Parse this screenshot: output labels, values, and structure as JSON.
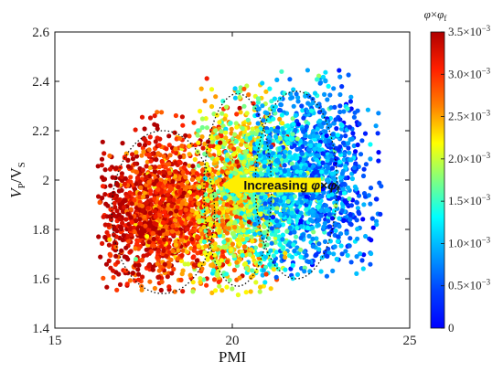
{
  "chart_data": {
    "type": "scatter",
    "xlabel": "PMI",
    "ylabel": {
      "main": "V",
      "sub1": "P",
      "slash": "/V",
      "sub2": "S"
    },
    "xlim": [
      15,
      25
    ],
    "ylim": [
      1.4,
      2.6
    ],
    "xticks": [
      15,
      20,
      25
    ],
    "yticks": [
      1.4,
      1.6,
      1.8,
      2.0,
      2.2,
      2.4,
      2.6
    ],
    "xtick_labels": [
      "15",
      "20",
      "25"
    ],
    "ytick_labels": [
      "1.4",
      "1.6",
      "1.8",
      "2",
      "2.2",
      "2.4",
      "2.6"
    ],
    "grid": false,
    "colorbar": {
      "title": {
        "phi": "φ",
        "times": "×",
        "phi2": "φ",
        "sub": "f"
      },
      "range": [
        0,
        0.0035
      ],
      "colormap": "jet",
      "ticks": [
        {
          "value": 0.0035,
          "mantissa": "3.5×10",
          "exp": "−3"
        },
        {
          "value": 0.003,
          "mantissa": "3.0×10",
          "exp": "−3"
        },
        {
          "value": 0.0025,
          "mantissa": "2.5×10",
          "exp": "−3"
        },
        {
          "value": 0.002,
          "mantissa": "2.0×10",
          "exp": "−3"
        },
        {
          "value": 0.0015,
          "mantissa": "1.5×10",
          "exp": "−3"
        },
        {
          "value": 0.001,
          "mantissa": "1.0×10",
          "exp": "−3"
        },
        {
          "value": 0.0005,
          "mantissa": "0.5×10",
          "exp": "−3"
        },
        {
          "value": 0,
          "mantissa": "0",
          "exp": ""
        }
      ]
    },
    "clusters": [
      {
        "x_center": 18.0,
        "y_center": 1.87,
        "x_sd": 0.9,
        "y_sd": 0.15,
        "x_range": [
          16.2,
          19.8
        ],
        "y_range": [
          1.54,
          2.28
        ],
        "color_center": 0.0031,
        "color_spread": 0.0004
      },
      {
        "x_center": 20.2,
        "y_center": 1.95,
        "x_sd": 0.7,
        "y_sd": 0.18,
        "x_range": [
          19.0,
          21.6
        ],
        "y_range": [
          1.53,
          2.42
        ],
        "color_center": 0.0021,
        "color_spread": 0.0005
      },
      {
        "x_center": 22.0,
        "y_center": 2.0,
        "x_sd": 0.9,
        "y_sd": 0.18,
        "x_range": [
          20.6,
          24.2
        ],
        "y_range": [
          1.6,
          2.45
        ],
        "color_center": 0.0009,
        "color_spread": 0.0004
      }
    ],
    "ellipses": [
      {
        "cx": 18.05,
        "cy": 1.87,
        "rx": 1.45,
        "ry": 0.33
      },
      {
        "cx": 20.15,
        "cy": 1.96,
        "rx": 0.95,
        "ry": 0.39
      },
      {
        "cx": 21.8,
        "cy": 1.98,
        "rx": 1.15,
        "ry": 0.38
      }
    ],
    "annotation": {
      "text": {
        "pre": "Increasing ",
        "phi": "φ",
        "times": "×",
        "phi2": "φ",
        "sub": "f"
      },
      "arrow_direction": "left",
      "arrow_color": "#ffee00",
      "x_start": 19.7,
      "x_end": 22.5,
      "y": 1.98
    }
  }
}
